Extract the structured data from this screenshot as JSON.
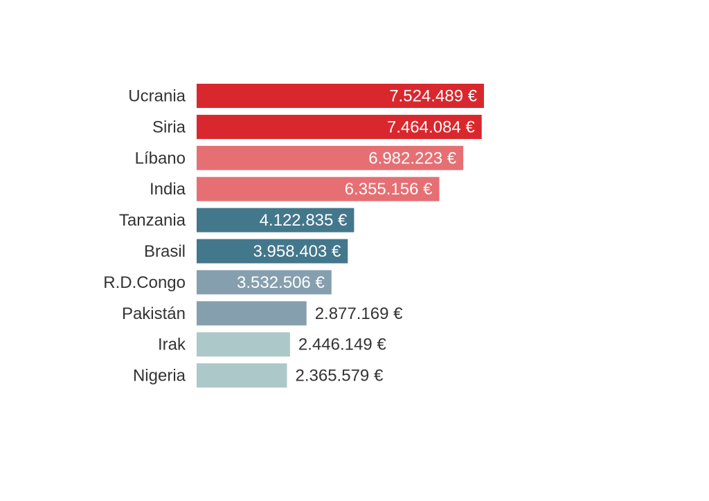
{
  "chart_data": {
    "type": "bar",
    "orientation": "horizontal",
    "categories": [
      "Ucrania",
      "Siria",
      "Líbano",
      "India",
      "Tanzania",
      "Brasil",
      "R.D.Congo",
      "Pakistán",
      "Irak",
      "Nigeria"
    ],
    "values": [
      7524489,
      7464084,
      6982223,
      6355156,
      4122835,
      3958403,
      3532506,
      2877169,
      2446149,
      2365579
    ],
    "value_labels": [
      "7.524.489 €",
      "7.464.084 €",
      "6.982.223 €",
      "6.355.156 €",
      "4.122.835 €",
      "3.958.403 €",
      "3.532.506 €",
      "2.877.169 €",
      "2.446.149 €",
      "2.365.579 €"
    ],
    "bar_colors": [
      "#d9272e",
      "#d9272e",
      "#e66f73",
      "#e66f73",
      "#43778c",
      "#43778c",
      "#869fae",
      "#869fae",
      "#adc8c9",
      "#adc8c9"
    ],
    "label_inside": [
      true,
      true,
      true,
      true,
      true,
      true,
      true,
      false,
      false,
      false
    ],
    "xlim": [
      0,
      7524489
    ],
    "grid": false,
    "legend": "none",
    "title": "",
    "xlabel": "",
    "ylabel": ""
  },
  "colors": {
    "category_text": "#333333",
    "label_inside_text": "#ffffff",
    "label_outside_text": "#333333",
    "background": "#ffffff"
  }
}
